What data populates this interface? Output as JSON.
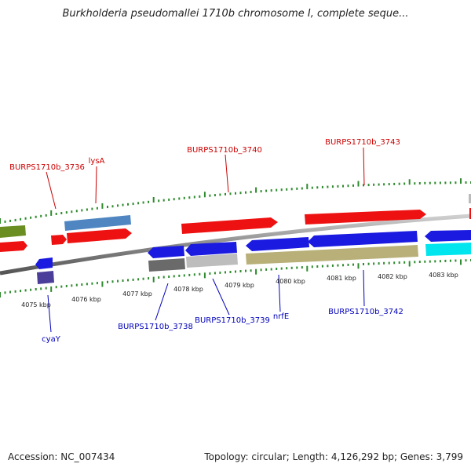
{
  "title": "Burkholderia pseudomallei 1710b chromosome I, complete seque...",
  "footer": {
    "accession": "Accession: NC_007434",
    "stats": "Topology: circular; Length: 4,126,292 bp; Genes: 3,799"
  },
  "ticks": [
    "4075 kbp",
    "4076 kbp",
    "4077 kbp",
    "4078 kbp",
    "4079 kbp",
    "4080 kbp",
    "4081 kbp",
    "4082 kbp",
    "4083 kbp"
  ],
  "gene_labels_top": [
    "BURPS1710b_3736",
    "lysA",
    "BURPS1710b_3740",
    "BURPS1710b_3743"
  ],
  "gene_labels_bottom": [
    "cyaY",
    "BURPS1710b_3738",
    "BURPS1710b_3739",
    "nrfE",
    "BURPS1710b_3742"
  ],
  "colors": {
    "forward_gene": "#ee1111",
    "reverse_gene": "#1a1ae0",
    "label_top": "#cc0000",
    "label_bottom": "#0000bb",
    "backbone": "#8a8a8a",
    "tick": "#2e8b2e",
    "olive": "#6b8e23",
    "steelblue": "#4f86c2",
    "khaki": "#b8b078",
    "cyan": "#00e5ee",
    "slateblue": "#4b3e9a",
    "gray_dark": "#6a6a6a",
    "gray_light": "#bdbdbd"
  }
}
